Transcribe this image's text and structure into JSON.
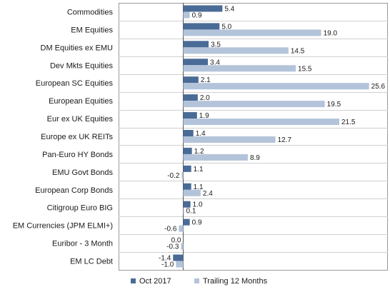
{
  "chart_data": {
    "type": "bar",
    "orientation": "horizontal",
    "categories": [
      "Commodities",
      "EM Equities",
      "DM Equities ex EMU",
      "Dev Mkts Equities",
      "European SC Equities",
      "European Equities",
      "Eur ex UK Equities",
      "Europe ex UK REITs",
      "Pan-Euro HY Bonds",
      "EMU Govt Bonds",
      "European Corp Bonds",
      "Citigroup Euro BIG",
      "EM Currencies (JPM ELMI+)",
      "Euribor - 3 Month",
      "EM LC Debt"
    ],
    "series": [
      {
        "name": "Oct 2017",
        "color": "#4a6b96",
        "values": [
          5.4,
          5.0,
          3.5,
          3.4,
          2.1,
          2.0,
          1.9,
          1.4,
          1.2,
          1.1,
          1.1,
          1.0,
          0.9,
          0.0,
          -1.4
        ]
      },
      {
        "name": "Trailing 12 Months",
        "color": "#b3c4da",
        "values": [
          0.9,
          19.0,
          14.5,
          15.5,
          25.6,
          19.5,
          21.5,
          12.7,
          8.9,
          -0.2,
          2.4,
          0.1,
          -0.6,
          -0.3,
          -1.0
        ]
      }
    ],
    "value_labels": [
      [
        "5.4",
        "5.0",
        "3.5",
        "3.4",
        "2.1",
        "2.0",
        "1.9",
        "1.4",
        "1.2",
        "1.1",
        "1.1",
        "1.0",
        "0.9",
        "0.0",
        "-1.4"
      ],
      [
        "0.9",
        "19.0",
        "14.5",
        "15.5",
        "25.6",
        "19.5",
        "21.5",
        "12.7",
        "8.9",
        "-0.2",
        "2.4",
        "0.1",
        "-0.6",
        "-0.3",
        "-1.0"
      ]
    ],
    "xlim": [
      -3.0,
      27.0
    ],
    "grid": "horizontal separators between categories",
    "legend_position": "bottom"
  }
}
